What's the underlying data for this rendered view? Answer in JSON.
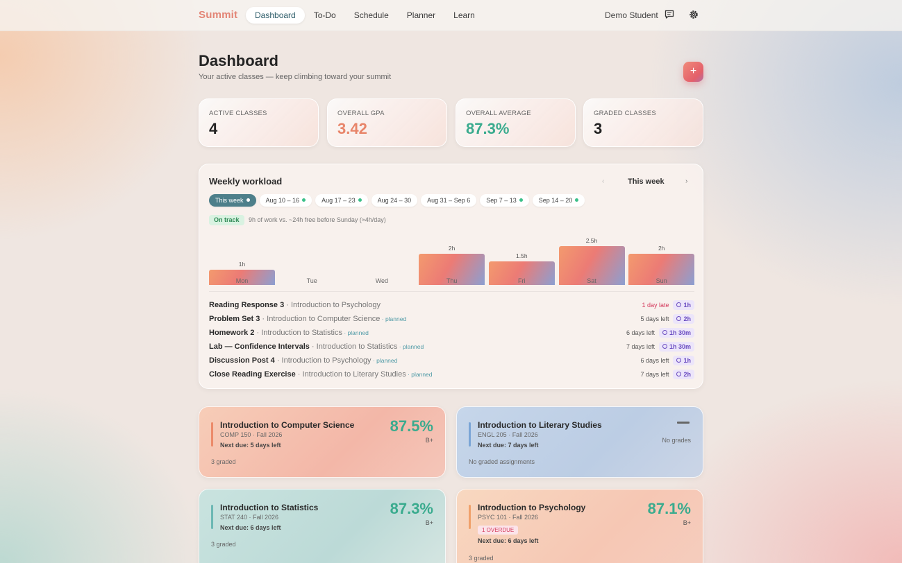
{
  "brand": "Summit",
  "nav": [
    {
      "label": "Dashboard",
      "active": true
    },
    {
      "label": "To-Do"
    },
    {
      "label": "Schedule"
    },
    {
      "label": "Planner"
    },
    {
      "label": "Learn"
    }
  ],
  "user": "Demo Student",
  "icons": {
    "chat": "chat-icon",
    "settings": "gear-icon",
    "add": "plus-icon"
  },
  "page": {
    "title": "Dashboard",
    "subtitle": "Your active classes — keep climbing toward your summit",
    "add_label": "+"
  },
  "stats": [
    {
      "label": "ACTIVE CLASSES",
      "value": "4",
      "color": "#232323"
    },
    {
      "label": "OVERALL GPA",
      "value": "3.42",
      "color": "#e8856a"
    },
    {
      "label": "OVERALL AVERAGE",
      "value": "87.3%",
      "color": "#3aab8e"
    },
    {
      "label": "GRADED CLASSES",
      "value": "3",
      "color": "#232323"
    }
  ],
  "workload": {
    "title": "Weekly workload",
    "prev": "‹",
    "current": "This week",
    "next": "›",
    "chips": [
      {
        "label": "This week",
        "active": true,
        "dot": true
      },
      {
        "label": "Aug 10 – 16",
        "dot": true
      },
      {
        "label": "Aug 17 – 23",
        "dot": true
      },
      {
        "label": "Aug 24 – 30",
        "dot": false
      },
      {
        "label": "Aug 31 – Sep 6",
        "dot": false
      },
      {
        "label": "Sep 7 – 13",
        "dot": true
      },
      {
        "label": "Sep 14 – 20",
        "dot": true
      }
    ],
    "status_badge": "On track",
    "status_text": "9h of work vs. ~24h free before Sunday (≈4h/day)",
    "days": [
      {
        "day": "Mon",
        "hours": 1,
        "label": "1h"
      },
      {
        "day": "Tue",
        "hours": 0,
        "label": ""
      },
      {
        "day": "Wed",
        "hours": 0,
        "label": ""
      },
      {
        "day": "Thu",
        "hours": 2,
        "label": "2h"
      },
      {
        "day": "Fri",
        "hours": 1.5,
        "label": "1.5h"
      },
      {
        "day": "Sat",
        "hours": 2.5,
        "label": "2.5h"
      },
      {
        "day": "Sun",
        "hours": 2,
        "label": "2h"
      }
    ],
    "tasks": [
      {
        "name": "Reading Response 3",
        "course": " · Introduction to Psychology",
        "planned": "",
        "due": "1 day late",
        "late": true,
        "time": "1h"
      },
      {
        "name": "Problem Set 3",
        "course": " · Introduction to Computer Science",
        "planned": " · planned",
        "due": "5 days left",
        "late": false,
        "time": "2h"
      },
      {
        "name": "Homework 2",
        "course": " · Introduction to Statistics",
        "planned": " · planned",
        "due": "6 days left",
        "late": false,
        "time": "1h 30m"
      },
      {
        "name": "Lab — Confidence Intervals",
        "course": " · Introduction to Statistics",
        "planned": " · planned",
        "due": "7 days left",
        "late": false,
        "time": "1h 30m"
      },
      {
        "name": "Discussion Post 4",
        "course": " · Introduction to Psychology",
        "planned": " · planned",
        "due": "6 days left",
        "late": false,
        "time": "1h"
      },
      {
        "name": "Close Reading Exercise",
        "course": " · Introduction to Literary Studies",
        "planned": " · planned",
        "due": "7 days left",
        "late": false,
        "time": "2h"
      }
    ]
  },
  "courses": [
    {
      "title": "Introduction to Computer Science",
      "code": "COMP 150 · Fall 2026",
      "next_due": "Next due: 5 days left",
      "overdue": "",
      "pct": "87.5%",
      "letter": "B+",
      "graded": "3 graded",
      "accent": "#ec8a6a",
      "bg": "linear-gradient(135deg, #f7cdb8, #f3b7a8 60%, #f4c6b9)"
    },
    {
      "title": "Introduction to Literary Studies",
      "code": "ENGL 205 · Fall 2026",
      "next_due": "Next due: 7 days left",
      "overdue": "",
      "pct": "",
      "letter": "",
      "no_grades": "No grades",
      "graded": "No graded assignments",
      "accent": "#7aa5d6",
      "bg": "linear-gradient(135deg, #c6d6ea, #bccde4 60%, #cbd5e6)"
    },
    {
      "title": "Introduction to Statistics",
      "code": "STAT 240 · Fall 2026",
      "next_due": "Next due: 6 days left",
      "overdue": "",
      "pct": "87.3%",
      "letter": "B+",
      "graded": "3 graded",
      "accent": "#6cb8b4",
      "bg": "linear-gradient(135deg, #c9e3df, #bcdad7 60%, #d6e6e2)"
    },
    {
      "title": "Introduction to Psychology",
      "code": "PSYC 101 · Fall 2026",
      "next_due": "Next due: 6 days left",
      "overdue": "1 OVERDUE",
      "pct": "87.1%",
      "letter": "B+",
      "graded": "3 graded",
      "accent": "#f0a06a",
      "bg": "linear-gradient(135deg, #f8d8c0, #f6c7b4 60%, #f5cdbe)"
    }
  ]
}
